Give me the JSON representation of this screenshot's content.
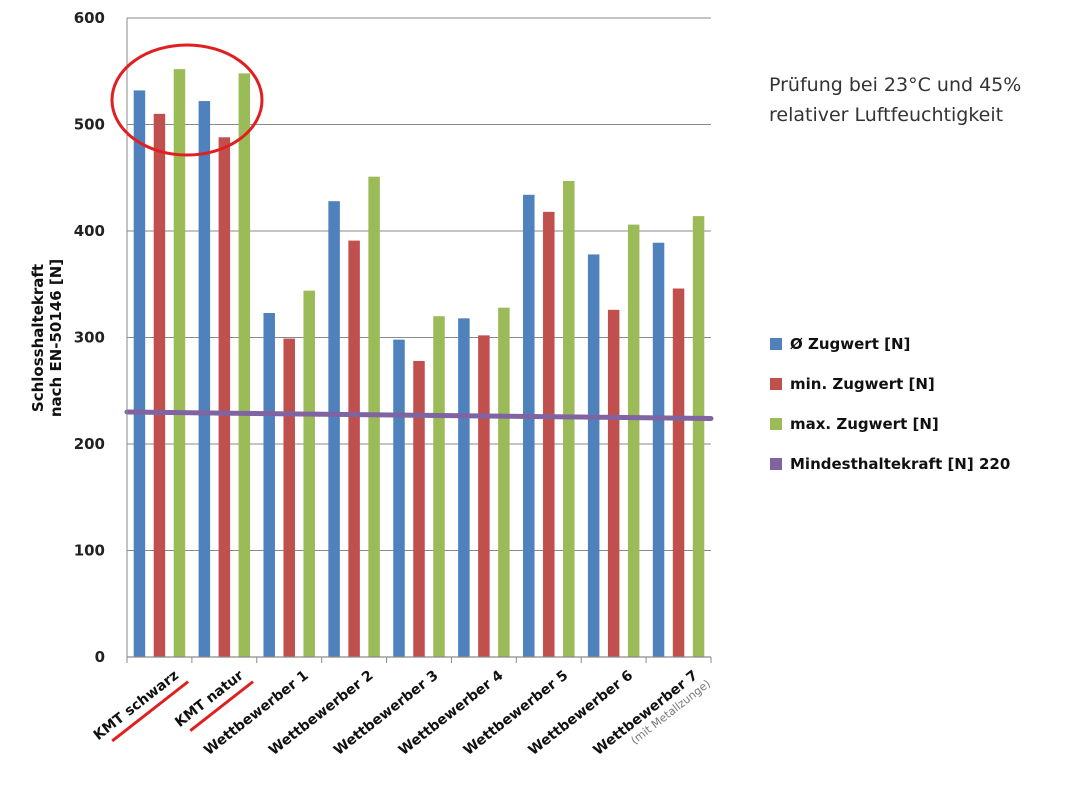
{
  "chart_data": {
    "type": "bar",
    "title": "",
    "ylabel_lines": [
      "Schlosshaltekraft",
      "nach EN-50146 [N]"
    ],
    "xlabel": "",
    "ylim": [
      0,
      600
    ],
    "yticks": [
      0,
      100,
      200,
      300,
      400,
      500,
      600
    ],
    "grid": true,
    "legend_position": "right",
    "categories": [
      "KMT schwarz",
      "KMT natur",
      "Wettbewerber 1",
      "Wettbewerber 2",
      "Wettbewerber 3",
      "Wettbewerber 4",
      "Wettbewerber 5",
      "Wettbewerber 6",
      "Wettbewerber 7"
    ],
    "category_notes": [
      "",
      "",
      "",
      "",
      "",
      "",
      "",
      "",
      "(mit Metallzunge)"
    ],
    "underlined_categories": [
      "KMT schwarz",
      "KMT natur"
    ],
    "series": [
      {
        "name": "Ø Zugwert [N]",
        "color": "#4f81bd",
        "values": [
          532,
          522,
          323,
          428,
          298,
          318,
          434,
          378,
          389
        ]
      },
      {
        "name": "min. Zugwert  [N]",
        "color": "#c0504d",
        "values": [
          510,
          488,
          299,
          391,
          278,
          302,
          418,
          326,
          346
        ]
      },
      {
        "name": "max. Zugwert [N]",
        "color": "#9bbb59",
        "values": [
          552,
          548,
          344,
          451,
          320,
          328,
          447,
          406,
          414
        ]
      }
    ],
    "reference_line": {
      "name": "Mindesthaltekraft [N] 220",
      "color": "#8064a2",
      "start": 230,
      "end": 224
    },
    "annotation_circle_color": "#e02020"
  },
  "note_lines": [
    "Prüfung bei 23°C und 45%",
    "relativer Luftfeuchtigkeit"
  ]
}
